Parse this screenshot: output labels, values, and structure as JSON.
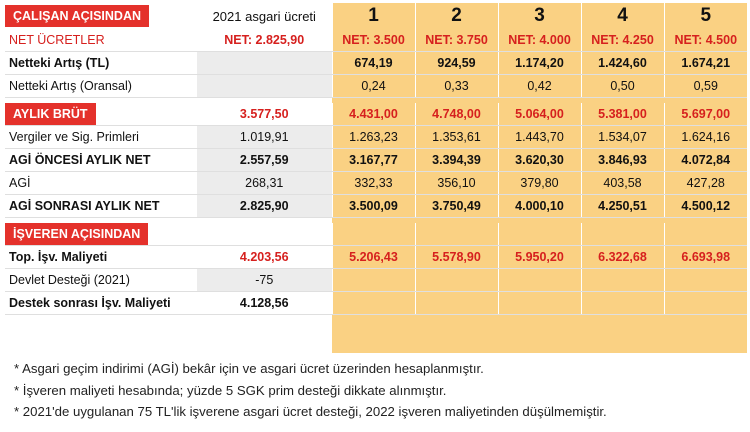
{
  "header": {
    "section_label": "ÇALIŞAN AÇISINDAN",
    "base_column": "2021 asgari ücreti",
    "scenarios": [
      "1",
      "2",
      "3",
      "4",
      "5"
    ]
  },
  "rows_employee": [
    {
      "label": "NET ÜCRETLER",
      "base": "NET: 2.825,90",
      "values": [
        "NET: 3.500",
        "NET: 3.750",
        "NET: 4.000",
        "NET: 4.250",
        "NET: 4.500"
      ]
    },
    {
      "label": "Netteki Artış (TL)",
      "base": "",
      "values": [
        "674,19",
        "924,59",
        "1.174,20",
        "1.424,60",
        "1.674,21"
      ]
    },
    {
      "label": "Netteki Artış (Oransal)",
      "base": "",
      "values": [
        "0,24",
        "0,33",
        "0,42",
        "0,50",
        "0,59"
      ]
    }
  ],
  "monthly_section_label": "AYLIK BRÜT",
  "monthly_gross": {
    "base": "3.577,50",
    "values": [
      "4.431,00",
      "4.748,00",
      "5.064,00",
      "5.381,00",
      "5.697,00"
    ]
  },
  "rows_monthly": [
    {
      "label": "Vergiler ve Sig. Primleri",
      "base": "1.019,91",
      "values": [
        "1.263,23",
        "1.353,61",
        "1.443,70",
        "1.534,07",
        "1.624,16"
      ]
    },
    {
      "label": "AGİ ÖNCESİ AYLIK NET",
      "base": "2.557,59",
      "values": [
        "3.167,77",
        "3.394,39",
        "3.620,30",
        "3.846,93",
        "4.072,84"
      ]
    },
    {
      "label": "AGİ",
      "base": "268,31",
      "values": [
        "332,33",
        "356,10",
        "379,80",
        "403,58",
        "427,28"
      ]
    },
    {
      "label": "AGİ SONRASI AYLIK NET",
      "base": "2.825,90",
      "values": [
        "3.500,09",
        "3.750,49",
        "4.000,10",
        "4.250,51",
        "4.500,12"
      ]
    }
  ],
  "employer_section_label": "İŞVEREN AÇISINDAN",
  "rows_employer": [
    {
      "label": "Top. İşv. Maliyeti",
      "base": "4.203,56",
      "values": [
        "5.206,43",
        "5.578,90",
        "5.950,20",
        "6.322,68",
        "6.693,98"
      ]
    },
    {
      "label": "Devlet Desteği (2021)",
      "base": "-75",
      "values": [
        "",
        "",
        "",
        "",
        ""
      ]
    },
    {
      "label": "Destek sonrası İşv. Maliyeti",
      "base": "4.128,56",
      "values": [
        "",
        "",
        "",
        "",
        ""
      ]
    }
  ],
  "notes": [
    "* Asgari geçim indirimi (AGİ) bekâr için ve asgari ücret üzerinden hesaplanmıştır.",
    "* İşveren maliyeti hesabında; yüzde 5 SGK prim desteği dikkate alınmıştır.",
    "* 2021'de uygulanan 75 TL'lik işverene asgari ücret desteği, 2022 işveren maliyetinden düşülmemiştir."
  ],
  "colors": {
    "red": "#e4312b",
    "orange": "#fad183",
    "gray": "#ececec"
  }
}
